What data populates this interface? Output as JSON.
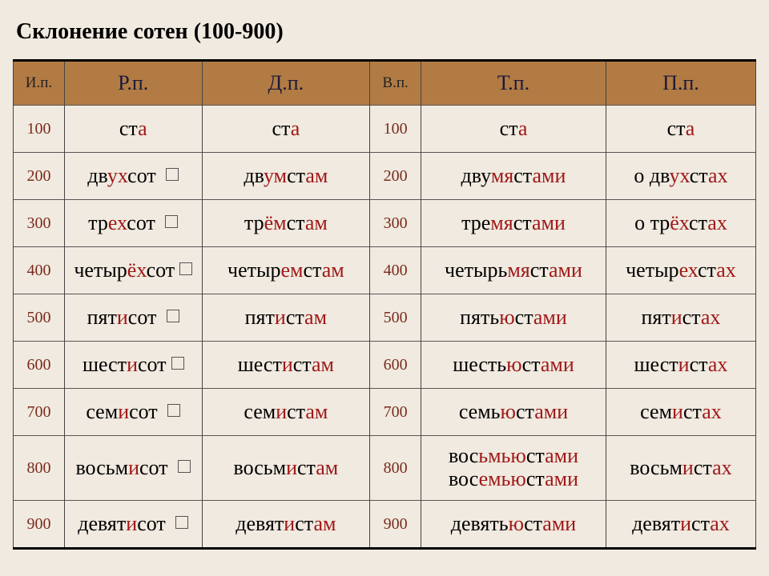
{
  "title": "Склонение сотен (100-900)",
  "header": {
    "ip": "И.п.",
    "rp": "Р.п.",
    "dp": "Д.п.",
    "vp": "В.п.",
    "tp": "Т.п.",
    "pp": "П.п."
  },
  "numbers": [
    "100",
    "200",
    "300",
    "400",
    "500",
    "600",
    "700",
    "800",
    "900"
  ],
  "cells": {
    "r0": {
      "rp": [
        [
          "ст",
          0
        ],
        [
          "а",
          1
        ]
      ],
      "dp": [
        [
          "ст",
          0
        ],
        [
          "а",
          1
        ]
      ],
      "tp": [
        [
          "ст",
          0
        ],
        [
          "а",
          1
        ]
      ],
      "pp": [
        [
          "ст",
          0
        ],
        [
          "а",
          1
        ]
      ]
    },
    "r1": {
      "rp": [
        [
          "дв",
          0
        ],
        [
          "ух",
          1
        ],
        [
          "сот ",
          0
        ],
        [
          "☐",
          2
        ]
      ],
      "dp": [
        [
          "дв",
          0
        ],
        [
          "ум",
          1
        ],
        [
          "ст",
          0
        ],
        [
          "ам",
          1
        ]
      ],
      "tp": [
        [
          "дву",
          0
        ],
        [
          "мя",
          1
        ],
        [
          "ст",
          0
        ],
        [
          "ами",
          1
        ]
      ],
      "pp": [
        [
          "о дв",
          0
        ],
        [
          "ух",
          1
        ],
        [
          "ст",
          0
        ],
        [
          "ах",
          1
        ]
      ]
    },
    "r2": {
      "rp": [
        [
          "тр",
          0
        ],
        [
          "ех",
          1
        ],
        [
          "сот ",
          0
        ],
        [
          "☐",
          2
        ]
      ],
      "dp": [
        [
          "тр",
          0
        ],
        [
          "ём",
          1
        ],
        [
          "ст",
          0
        ],
        [
          "ам",
          1
        ]
      ],
      "tp": [
        [
          "тре",
          0
        ],
        [
          "мя",
          1
        ],
        [
          "ст",
          0
        ],
        [
          "ами",
          1
        ]
      ],
      "pp": [
        [
          "о тр",
          0
        ],
        [
          "ёх",
          1
        ],
        [
          "ст",
          0
        ],
        [
          "ах",
          1
        ]
      ]
    },
    "r3": {
      "rp": [
        [
          "четыр",
          0
        ],
        [
          "ёх",
          1
        ],
        [
          "сот",
          0
        ],
        [
          "☐",
          2
        ]
      ],
      "dp": [
        [
          "четыр",
          0
        ],
        [
          "ем",
          1
        ],
        [
          "ст",
          0
        ],
        [
          "ам",
          1
        ]
      ],
      "tp": [
        [
          "четырь",
          0
        ],
        [
          "мя",
          1
        ],
        [
          "ст",
          0
        ],
        [
          "ами",
          1
        ]
      ],
      "pp": [
        [
          "четыр",
          0
        ],
        [
          "ех",
          1
        ],
        [
          "ст",
          0
        ],
        [
          "ах",
          1
        ]
      ]
    },
    "r4": {
      "rp": [
        [
          "пят",
          0
        ],
        [
          "и",
          1
        ],
        [
          "сот ",
          0
        ],
        [
          "☐",
          2
        ]
      ],
      "dp": [
        [
          "пят",
          0
        ],
        [
          "и",
          1
        ],
        [
          "ст",
          0
        ],
        [
          "ам",
          1
        ]
      ],
      "tp": [
        [
          "пять",
          0
        ],
        [
          "ю",
          1
        ],
        [
          "ст",
          0
        ],
        [
          "ами",
          1
        ]
      ],
      "pp": [
        [
          "пят",
          0
        ],
        [
          "и",
          1
        ],
        [
          "ст",
          0
        ],
        [
          "ах",
          1
        ]
      ]
    },
    "r5": {
      "rp": [
        [
          "шест",
          0
        ],
        [
          "и",
          1
        ],
        [
          "сот",
          0
        ],
        [
          "☐",
          2
        ]
      ],
      "dp": [
        [
          "шест",
          0
        ],
        [
          "и",
          1
        ],
        [
          "ст",
          0
        ],
        [
          "ам",
          1
        ]
      ],
      "tp": [
        [
          "шесть",
          0
        ],
        [
          "ю",
          1
        ],
        [
          "ст",
          0
        ],
        [
          "ами",
          1
        ]
      ],
      "pp": [
        [
          "шест",
          0
        ],
        [
          "и",
          1
        ],
        [
          "ст",
          0
        ],
        [
          "ах",
          1
        ]
      ]
    },
    "r6": {
      "rp": [
        [
          "сем",
          0
        ],
        [
          "и",
          1
        ],
        [
          "сот ",
          0
        ],
        [
          "☐",
          2
        ]
      ],
      "dp": [
        [
          "сем",
          0
        ],
        [
          "и",
          1
        ],
        [
          "ст",
          0
        ],
        [
          "ам",
          1
        ]
      ],
      "tp": [
        [
          "семь",
          0
        ],
        [
          "ю",
          1
        ],
        [
          "ст",
          0
        ],
        [
          "ами",
          1
        ]
      ],
      "pp": [
        [
          "сем",
          0
        ],
        [
          "и",
          1
        ],
        [
          "ст",
          0
        ],
        [
          "ах",
          1
        ]
      ]
    },
    "r7": {
      "rp": [
        [
          "восьм",
          0
        ],
        [
          "и",
          1
        ],
        [
          "сот ",
          0
        ],
        [
          "☐",
          2
        ]
      ],
      "dp": [
        [
          "восьм",
          0
        ],
        [
          "и",
          1
        ],
        [
          "ст",
          0
        ],
        [
          "ам",
          1
        ]
      ],
      "tp": [
        [
          "вос",
          0
        ],
        [
          "ьмью",
          1
        ],
        [
          "ст",
          0
        ],
        [
          "ами",
          1
        ],
        [
          "\n",
          3
        ],
        [
          "вос",
          0
        ],
        [
          "емью",
          1
        ],
        [
          "ст",
          0
        ],
        [
          "ами",
          1
        ]
      ],
      "pp": [
        [
          "восьм",
          0
        ],
        [
          "и",
          1
        ],
        [
          "ст",
          0
        ],
        [
          "ах",
          1
        ]
      ]
    },
    "r8": {
      "rp": [
        [
          "девят",
          0
        ],
        [
          "и",
          1
        ],
        [
          "сот ",
          0
        ],
        [
          "☐",
          2
        ]
      ],
      "dp": [
        [
          "девят",
          0
        ],
        [
          "и",
          1
        ],
        [
          "ст",
          0
        ],
        [
          "ам",
          1
        ]
      ],
      "tp": [
        [
          "девять",
          0
        ],
        [
          "ю",
          1
        ],
        [
          "ст",
          0
        ],
        [
          "ами",
          1
        ]
      ],
      "pp": [
        [
          "девят",
          0
        ],
        [
          "и",
          1
        ],
        [
          "ст",
          0
        ],
        [
          "ах",
          1
        ]
      ]
    }
  },
  "style": {
    "background": "#f0eae0",
    "header_bg": "#b27b44",
    "highlight_color": "#a01818",
    "number_color": "#7a2a1a",
    "border_color": "#444444",
    "title_fontsize": 28,
    "header_fontsize": 26,
    "cell_fontsize": 26,
    "number_fontsize": 20
  }
}
